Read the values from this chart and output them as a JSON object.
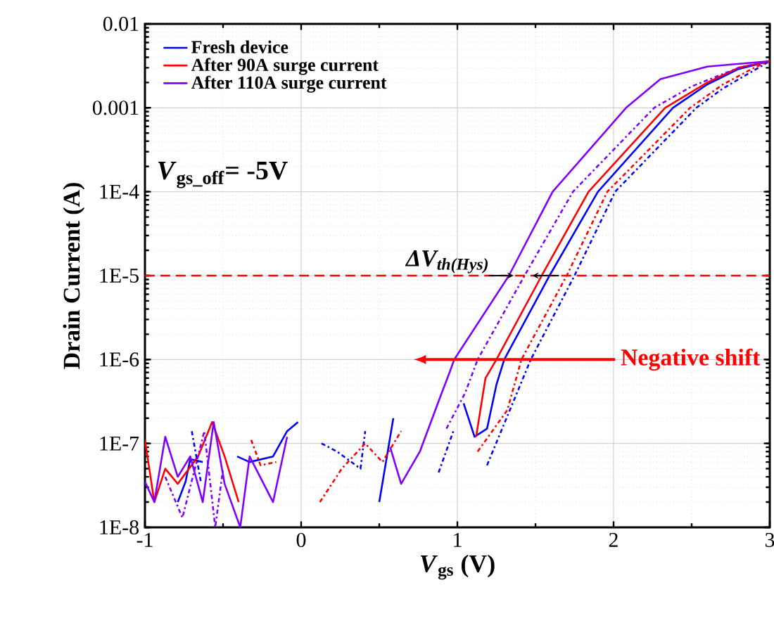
{
  "chart_data": {
    "type": "line",
    "xlabel": "*V*$_{gs}$ (V)",
    "ylabel": "Drain Current (A)",
    "log": "y",
    "grid": true,
    "legend": "top left",
    "xlim": [
      -1,
      3
    ],
    "xticks": [
      -1,
      0,
      1,
      2,
      3
    ],
    "ylim": [
      1e-08,
      0.01
    ],
    "yticks": [
      {
        "value": 1e-08,
        "label": "1E-8"
      },
      {
        "value": 1e-07,
        "label": "1E-7"
      },
      {
        "value": 1e-06,
        "label": "1E-6"
      },
      {
        "value": 1e-05,
        "label": "1E-5"
      },
      {
        "value": 0.0001,
        "label": "1E-4"
      },
      0.001,
      0.01
    ],
    "series": [
      {
        "name": "Fresh device",
        "color": "#0000ff",
        "line_style": "solid",
        "x": [
          -0.79,
          -0.74,
          -0.71,
          -0.63,
          -0.5,
          -0.41,
          -0.33,
          -0.18,
          -0.09,
          -0.02,
          0.2,
          0.5,
          0.59,
          0.8,
          1.04,
          1.11,
          1.19,
          1.25,
          1.3,
          1.59,
          1.9,
          2.38,
          2.6,
          2.8,
          3
        ],
        "values": [
          2e-08,
          3.5e-08,
          6.5e-08,
          6e-08,
          null,
          7e-08,
          6e-08,
          7e-08,
          1.4e-07,
          1.8e-07,
          null,
          2e-08,
          2e-07,
          null,
          3e-07,
          1.2e-07,
          1.5e-07,
          5e-07,
          1e-06,
          1e-05,
          0.0001,
          0.001,
          0.0019,
          0.0029,
          0.0036
        ]
      },
      {
        "name": "After 90A surge current",
        "color": "#ff0000",
        "line_style": "solid",
        "x": [
          -1,
          -0.94,
          -0.87,
          -0.79,
          -0.66,
          -0.57,
          -0.49,
          -0.4,
          0.3,
          1.12,
          1.18,
          1.25,
          1.54,
          1.84,
          2.33,
          2.6,
          2.8,
          3
        ],
        "values": [
          1.1e-07,
          2e-08,
          5e-08,
          3.3e-08,
          7e-08,
          1.8e-07,
          7e-08,
          2e-08,
          null,
          1.2e-07,
          6e-07,
          1e-06,
          1e-05,
          0.0001,
          0.001,
          0.002,
          0.003,
          0.0036
        ]
      },
      {
        "name": "After 110A surge current",
        "color": "#8000ff",
        "line_style": "solid",
        "x": [
          -1,
          -0.94,
          -0.87,
          -0.79,
          -0.71,
          -0.63,
          -0.56,
          -0.49,
          -0.39,
          -0.33,
          -0.18,
          -0.09,
          0.2,
          0.57,
          0.64,
          0.76,
          0.9,
          0.95,
          0.98,
          1.33,
          1.61,
          2.08,
          2.3,
          2.6,
          3
        ],
        "values": [
          3.5e-08,
          2e-08,
          1.2e-07,
          4e-08,
          7e-08,
          2e-08,
          1.8e-07,
          3.3e-08,
          1e-08,
          7e-08,
          2e-08,
          1.2e-07,
          null,
          9e-08,
          3.3e-08,
          8e-08,
          4e-07,
          7e-07,
          1e-06,
          1e-05,
          0.0001,
          0.001,
          0.0022,
          0.0031,
          0.0036
        ]
      },
      {
        "color": "#0000ff",
        "line_style": "dashed",
        "x": [
          -0.7,
          -0.64,
          0,
          0.13,
          0.23,
          0.38,
          0.41,
          0.6,
          0.88,
          0.98,
          1.1,
          1.19,
          1.47,
          1.75,
          2.01,
          2.53,
          2.7,
          2.9,
          3
        ],
        "values": [
          1.4e-07,
          3.3e-08,
          null,
          1e-07,
          8e-08,
          5e-08,
          1.4e-07,
          null,
          4.5e-08,
          1.5e-07,
          null,
          5.5e-08,
          1e-06,
          1e-05,
          0.0001,
          0.001,
          0.0017,
          0.0028,
          0.0036
        ]
      },
      {
        "color": "#ff0000",
        "line_style": "dashed",
        "x": [
          -0.32,
          -0.26,
          -0.16,
          0,
          0.12,
          0.26,
          0.41,
          0.52,
          0.64,
          0.9,
          1.13,
          1.32,
          1.41,
          1.7,
          1.96,
          2.49,
          2.7,
          2.9,
          3
        ],
        "values": [
          1.1e-07,
          5.5e-08,
          6e-08,
          null,
          2e-08,
          5e-08,
          1e-07,
          6e-08,
          1.4e-07,
          null,
          8e-08,
          2.5e-07,
          1e-06,
          1e-05,
          0.0001,
          0.001,
          0.0019,
          0.003,
          0.0036
        ]
      },
      {
        "color": "#8000ff",
        "line_style": "dashed",
        "x": [
          -0.87,
          -0.76,
          -0.62,
          -0.55,
          -0.5,
          0.2,
          0.93,
          1.05,
          1.13,
          1.43,
          1.74,
          2.26,
          2.5,
          2.8,
          3
        ],
        "values": [
          4e-08,
          1.3e-08,
          1.4e-07,
          1e-08,
          5e-08,
          null,
          1.5e-07,
          4e-07,
          1e-06,
          1e-05,
          0.0001,
          0.001,
          0.0018,
          0.003,
          0.0036
        ]
      }
    ],
    "ref_lines": [
      {
        "axis": "y",
        "value": 1e-05,
        "color": "#ff0000",
        "line_style": "dashed"
      }
    ],
    "annotations": [
      "*V*$_{gs_off}$= -5V",
      {
        "text": "ΔV$_{th(Hys)}$",
        "x": 1.44,
        "y": 1e-05
      },
      "Negative shift"
    ]
  }
}
